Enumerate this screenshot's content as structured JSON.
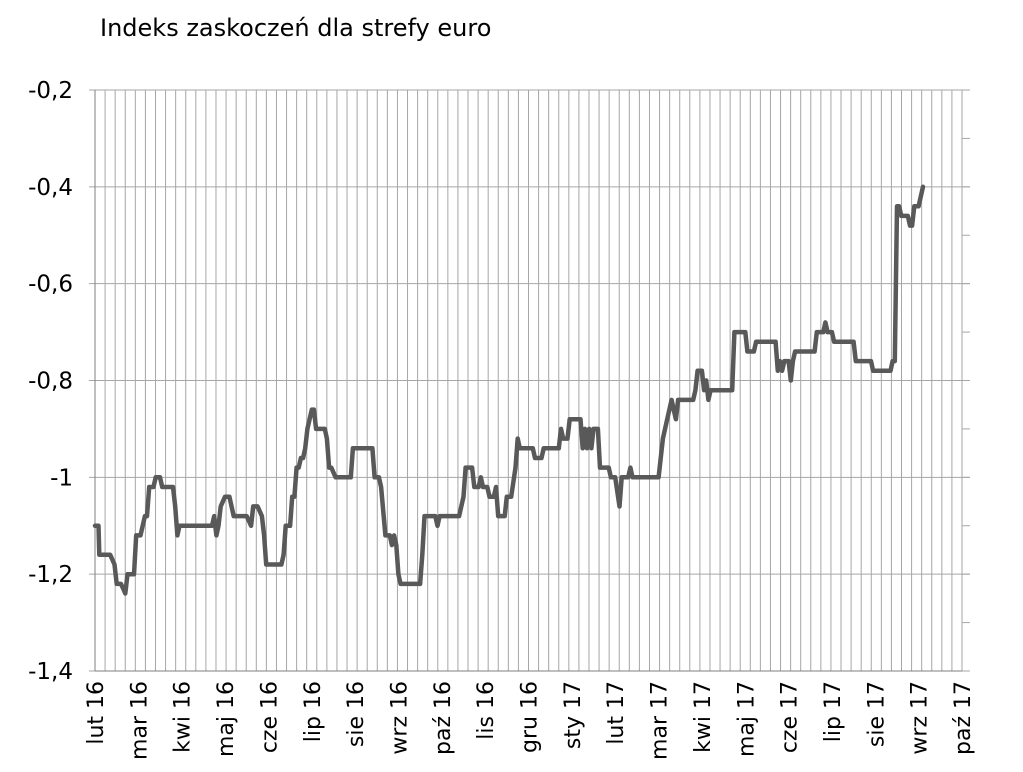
{
  "chart_data": {
    "type": "line",
    "title": "Indeks zaskoczeń dla strefy euro",
    "xlabel": "",
    "ylabel": "",
    "ylim": [
      -1.4,
      -0.2
    ],
    "yticks": [
      -0.2,
      -0.4,
      -0.6,
      -0.8,
      -1.0,
      -1.2,
      -1.4
    ],
    "ytick_labels": [
      "-0,2",
      "-0,4",
      "-0,6",
      "-0,8",
      "-1",
      "-1,2",
      "-1,4"
    ],
    "grid": "vertical",
    "x_tick_labels": [
      "lut 16",
      "mar 16",
      "kwi 16",
      "maj 16",
      "cze 16",
      "lip 16",
      "sie 16",
      "wrz 16",
      "paź 16",
      "lis 16",
      "gru 16",
      "sty 17",
      "lut 17",
      "mar 17",
      "kwi 17",
      "maj 17",
      "cze 17",
      "lip 17",
      "sie 17",
      "wrz 17",
      "paź 17"
    ],
    "x_range_months": [
      0,
      20
    ],
    "series": [
      {
        "color": "#595959",
        "points": [
          [
            0.0,
            -1.1
          ],
          [
            0.08,
            -1.1
          ],
          [
            0.1,
            -1.16
          ],
          [
            0.35,
            -1.16
          ],
          [
            0.45,
            -1.18
          ],
          [
            0.5,
            -1.22
          ],
          [
            0.6,
            -1.22
          ],
          [
            0.65,
            -1.23
          ],
          [
            0.7,
            -1.24
          ],
          [
            0.75,
            -1.2
          ],
          [
            0.9,
            -1.2
          ],
          [
            0.95,
            -1.12
          ],
          [
            1.05,
            -1.12
          ],
          [
            1.1,
            -1.1
          ],
          [
            1.15,
            -1.08
          ],
          [
            1.2,
            -1.08
          ],
          [
            1.25,
            -1.02
          ],
          [
            1.35,
            -1.02
          ],
          [
            1.4,
            -1.0
          ],
          [
            1.5,
            -1.0
          ],
          [
            1.55,
            -1.02
          ],
          [
            1.8,
            -1.02
          ],
          [
            1.85,
            -1.06
          ],
          [
            1.9,
            -1.12
          ],
          [
            1.95,
            -1.1
          ],
          [
            2.7,
            -1.1
          ],
          [
            2.75,
            -1.08
          ],
          [
            2.8,
            -1.12
          ],
          [
            2.85,
            -1.1
          ],
          [
            2.9,
            -1.06
          ],
          [
            3.0,
            -1.04
          ],
          [
            3.1,
            -1.04
          ],
          [
            3.2,
            -1.08
          ],
          [
            3.4,
            -1.08
          ],
          [
            3.5,
            -1.08
          ],
          [
            3.6,
            -1.1
          ],
          [
            3.65,
            -1.06
          ],
          [
            3.75,
            -1.06
          ],
          [
            3.85,
            -1.08
          ],
          [
            3.9,
            -1.12
          ],
          [
            3.95,
            -1.18
          ],
          [
            4.3,
            -1.18
          ],
          [
            4.35,
            -1.16
          ],
          [
            4.4,
            -1.1
          ],
          [
            4.5,
            -1.1
          ],
          [
            4.55,
            -1.04
          ],
          [
            4.6,
            -1.04
          ],
          [
            4.65,
            -0.98
          ],
          [
            4.7,
            -0.98
          ],
          [
            4.75,
            -0.96
          ],
          [
            4.8,
            -0.96
          ],
          [
            4.85,
            -0.94
          ],
          [
            4.9,
            -0.9
          ],
          [
            5.0,
            -0.86
          ],
          [
            5.05,
            -0.86
          ],
          [
            5.1,
            -0.9
          ],
          [
            5.3,
            -0.9
          ],
          [
            5.35,
            -0.92
          ],
          [
            5.4,
            -0.98
          ],
          [
            5.45,
            -0.98
          ],
          [
            5.55,
            -1.0
          ],
          [
            5.9,
            -1.0
          ],
          [
            5.95,
            -0.94
          ],
          [
            6.4,
            -0.94
          ],
          [
            6.45,
            -1.0
          ],
          [
            6.55,
            -1.0
          ],
          [
            6.6,
            -1.02
          ],
          [
            6.7,
            -1.12
          ],
          [
            6.8,
            -1.12
          ],
          [
            6.85,
            -1.14
          ],
          [
            6.9,
            -1.12
          ],
          [
            6.95,
            -1.14
          ],
          [
            7.0,
            -1.2
          ],
          [
            7.05,
            -1.22
          ],
          [
            7.5,
            -1.22
          ],
          [
            7.55,
            -1.16
          ],
          [
            7.6,
            -1.08
          ],
          [
            7.85,
            -1.08
          ],
          [
            7.9,
            -1.1
          ],
          [
            7.95,
            -1.08
          ],
          [
            8.4,
            -1.08
          ],
          [
            8.5,
            -1.04
          ],
          [
            8.55,
            -0.98
          ],
          [
            8.7,
            -0.98
          ],
          [
            8.75,
            -1.02
          ],
          [
            8.85,
            -1.02
          ],
          [
            8.9,
            -1.0
          ],
          [
            8.95,
            -1.02
          ],
          [
            9.05,
            -1.02
          ],
          [
            9.1,
            -1.04
          ],
          [
            9.2,
            -1.04
          ],
          [
            9.25,
            -1.02
          ],
          [
            9.3,
            -1.08
          ],
          [
            9.45,
            -1.08
          ],
          [
            9.5,
            -1.04
          ],
          [
            9.6,
            -1.04
          ],
          [
            9.7,
            -0.98
          ],
          [
            9.75,
            -0.92
          ],
          [
            9.8,
            -0.94
          ],
          [
            10.1,
            -0.94
          ],
          [
            10.15,
            -0.96
          ],
          [
            10.3,
            -0.96
          ],
          [
            10.35,
            -0.94
          ],
          [
            10.7,
            -0.94
          ],
          [
            10.75,
            -0.9
          ],
          [
            10.8,
            -0.92
          ],
          [
            10.9,
            -0.92
          ],
          [
            10.95,
            -0.88
          ],
          [
            11.2,
            -0.88
          ],
          [
            11.25,
            -0.94
          ],
          [
            11.3,
            -0.9
          ],
          [
            11.35,
            -0.94
          ],
          [
            11.4,
            -0.9
          ],
          [
            11.45,
            -0.94
          ],
          [
            11.5,
            -0.9
          ],
          [
            11.6,
            -0.9
          ],
          [
            11.65,
            -0.98
          ],
          [
            11.85,
            -0.98
          ],
          [
            11.9,
            -1.0
          ],
          [
            12.0,
            -1.0
          ],
          [
            12.1,
            -1.06
          ],
          [
            12.15,
            -1.0
          ],
          [
            12.3,
            -1.0
          ],
          [
            12.35,
            -0.98
          ],
          [
            12.4,
            -1.0
          ],
          [
            13.0,
            -1.0
          ],
          [
            13.1,
            -0.92
          ],
          [
            13.2,
            -0.88
          ],
          [
            13.3,
            -0.84
          ],
          [
            13.35,
            -0.86
          ],
          [
            13.4,
            -0.88
          ],
          [
            13.45,
            -0.84
          ],
          [
            13.8,
            -0.84
          ],
          [
            13.85,
            -0.82
          ],
          [
            13.9,
            -0.78
          ],
          [
            14.0,
            -0.78
          ],
          [
            14.05,
            -0.82
          ],
          [
            14.1,
            -0.8
          ],
          [
            14.15,
            -0.84
          ],
          [
            14.2,
            -0.82
          ],
          [
            14.7,
            -0.82
          ],
          [
            14.75,
            -0.7
          ],
          [
            15.0,
            -0.7
          ],
          [
            15.05,
            -0.74
          ],
          [
            15.2,
            -0.74
          ],
          [
            15.25,
            -0.72
          ],
          [
            15.7,
            -0.72
          ],
          [
            15.75,
            -0.78
          ],
          [
            15.8,
            -0.76
          ],
          [
            15.85,
            -0.78
          ],
          [
            15.9,
            -0.76
          ],
          [
            16.0,
            -0.76
          ],
          [
            16.05,
            -0.8
          ],
          [
            16.1,
            -0.76
          ],
          [
            16.15,
            -0.74
          ],
          [
            16.6,
            -0.74
          ],
          [
            16.65,
            -0.7
          ],
          [
            16.8,
            -0.7
          ],
          [
            16.85,
            -0.68
          ],
          [
            16.9,
            -0.7
          ],
          [
            17.0,
            -0.7
          ],
          [
            17.05,
            -0.72
          ],
          [
            17.5,
            -0.72
          ],
          [
            17.55,
            -0.76
          ],
          [
            17.9,
            -0.76
          ],
          [
            17.95,
            -0.78
          ],
          [
            18.35,
            -0.78
          ],
          [
            18.4,
            -0.76
          ],
          [
            18.45,
            -0.76
          ],
          [
            18.5,
            -0.44
          ],
          [
            18.55,
            -0.44
          ],
          [
            18.6,
            -0.46
          ],
          [
            18.75,
            -0.46
          ],
          [
            18.8,
            -0.48
          ],
          [
            18.85,
            -0.48
          ],
          [
            18.9,
            -0.44
          ],
          [
            19.0,
            -0.44
          ],
          [
            19.05,
            -0.42
          ],
          [
            19.1,
            -0.4
          ]
        ]
      }
    ]
  }
}
